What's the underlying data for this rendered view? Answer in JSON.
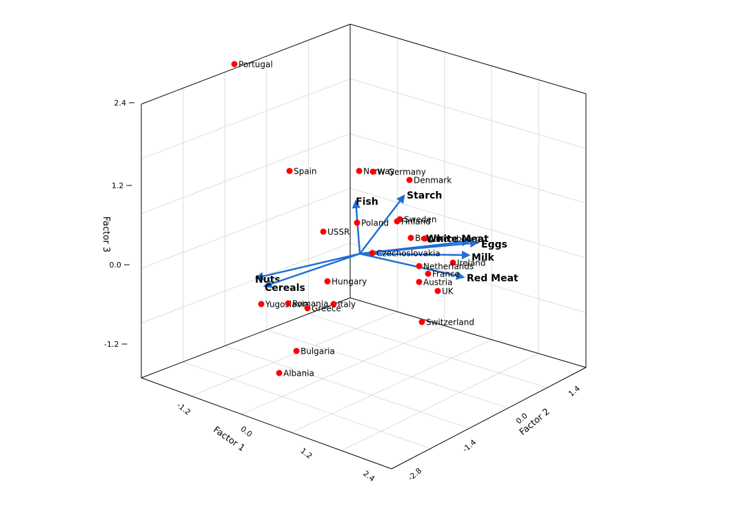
{
  "chart_data": {
    "type": "scatter",
    "axes": {
      "x": {
        "label": "Factor 1",
        "ticks": [
          "-1.2",
          "0.0",
          "1.2",
          "2.4"
        ]
      },
      "y": {
        "label": "Factor 2",
        "ticks": [
          "1.4",
          "0.0",
          "-1.4",
          "-2.8"
        ]
      },
      "z": {
        "label": "Factor 3",
        "ticks": [
          "2.4",
          "1.2",
          "0.0",
          "-1.2"
        ]
      }
    },
    "grid": true,
    "colors": {
      "points": "#ff0000",
      "vectors": "#1f6fd6",
      "grid": "#dcdcdc"
    },
    "points": [
      {
        "label": "Portugal",
        "factor3": 3.0
      },
      {
        "label": "Spain",
        "factor3": 1.45
      },
      {
        "label": "Norway",
        "factor3": 1.4
      },
      {
        "label": "W Germany",
        "factor3": 1.4
      },
      {
        "label": "Denmark",
        "factor3": 1.25
      },
      {
        "label": "Sweden",
        "factor3": 0.72
      },
      {
        "label": "Finland",
        "factor3": 0.68
      },
      {
        "label": "Poland",
        "factor3": 0.65
      },
      {
        "label": "USSR",
        "factor3": 0.52
      },
      {
        "label": "Belgium",
        "factor3": 0.42
      },
      {
        "label": "Luxembourg",
        "factor3": 0.42
      },
      {
        "label": "Czechoslovakia",
        "factor3": 0.2
      },
      {
        "label": "Ireland",
        "factor3": 0.05
      },
      {
        "label": "Netherlands",
        "factor3": 0.0
      },
      {
        "label": "France",
        "factor3": -0.12
      },
      {
        "label": "Austria",
        "factor3": -0.25
      },
      {
        "label": "Hungary",
        "factor3": -0.25
      },
      {
        "label": "UK",
        "factor3": -0.38
      },
      {
        "label": "Yugoslavia",
        "factor3": -0.58
      },
      {
        "label": "Romania",
        "factor3": -0.58
      },
      {
        "label": "Italy",
        "factor3": -0.58
      },
      {
        "label": "Greece",
        "factor3": -0.63
      },
      {
        "label": "Switzerland",
        "factor3": -0.85
      },
      {
        "label": "Bulgaria",
        "factor3": -1.3
      },
      {
        "label": "Albania",
        "factor3": -1.62
      }
    ],
    "vectors": [
      {
        "label": "Fish"
      },
      {
        "label": "Starch"
      },
      {
        "label": "White Meat"
      },
      {
        "label": "Eggs"
      },
      {
        "label": "Milk"
      },
      {
        "label": "Red Meat"
      },
      {
        "label": "Nuts"
      },
      {
        "label": "Cereals"
      }
    ]
  }
}
